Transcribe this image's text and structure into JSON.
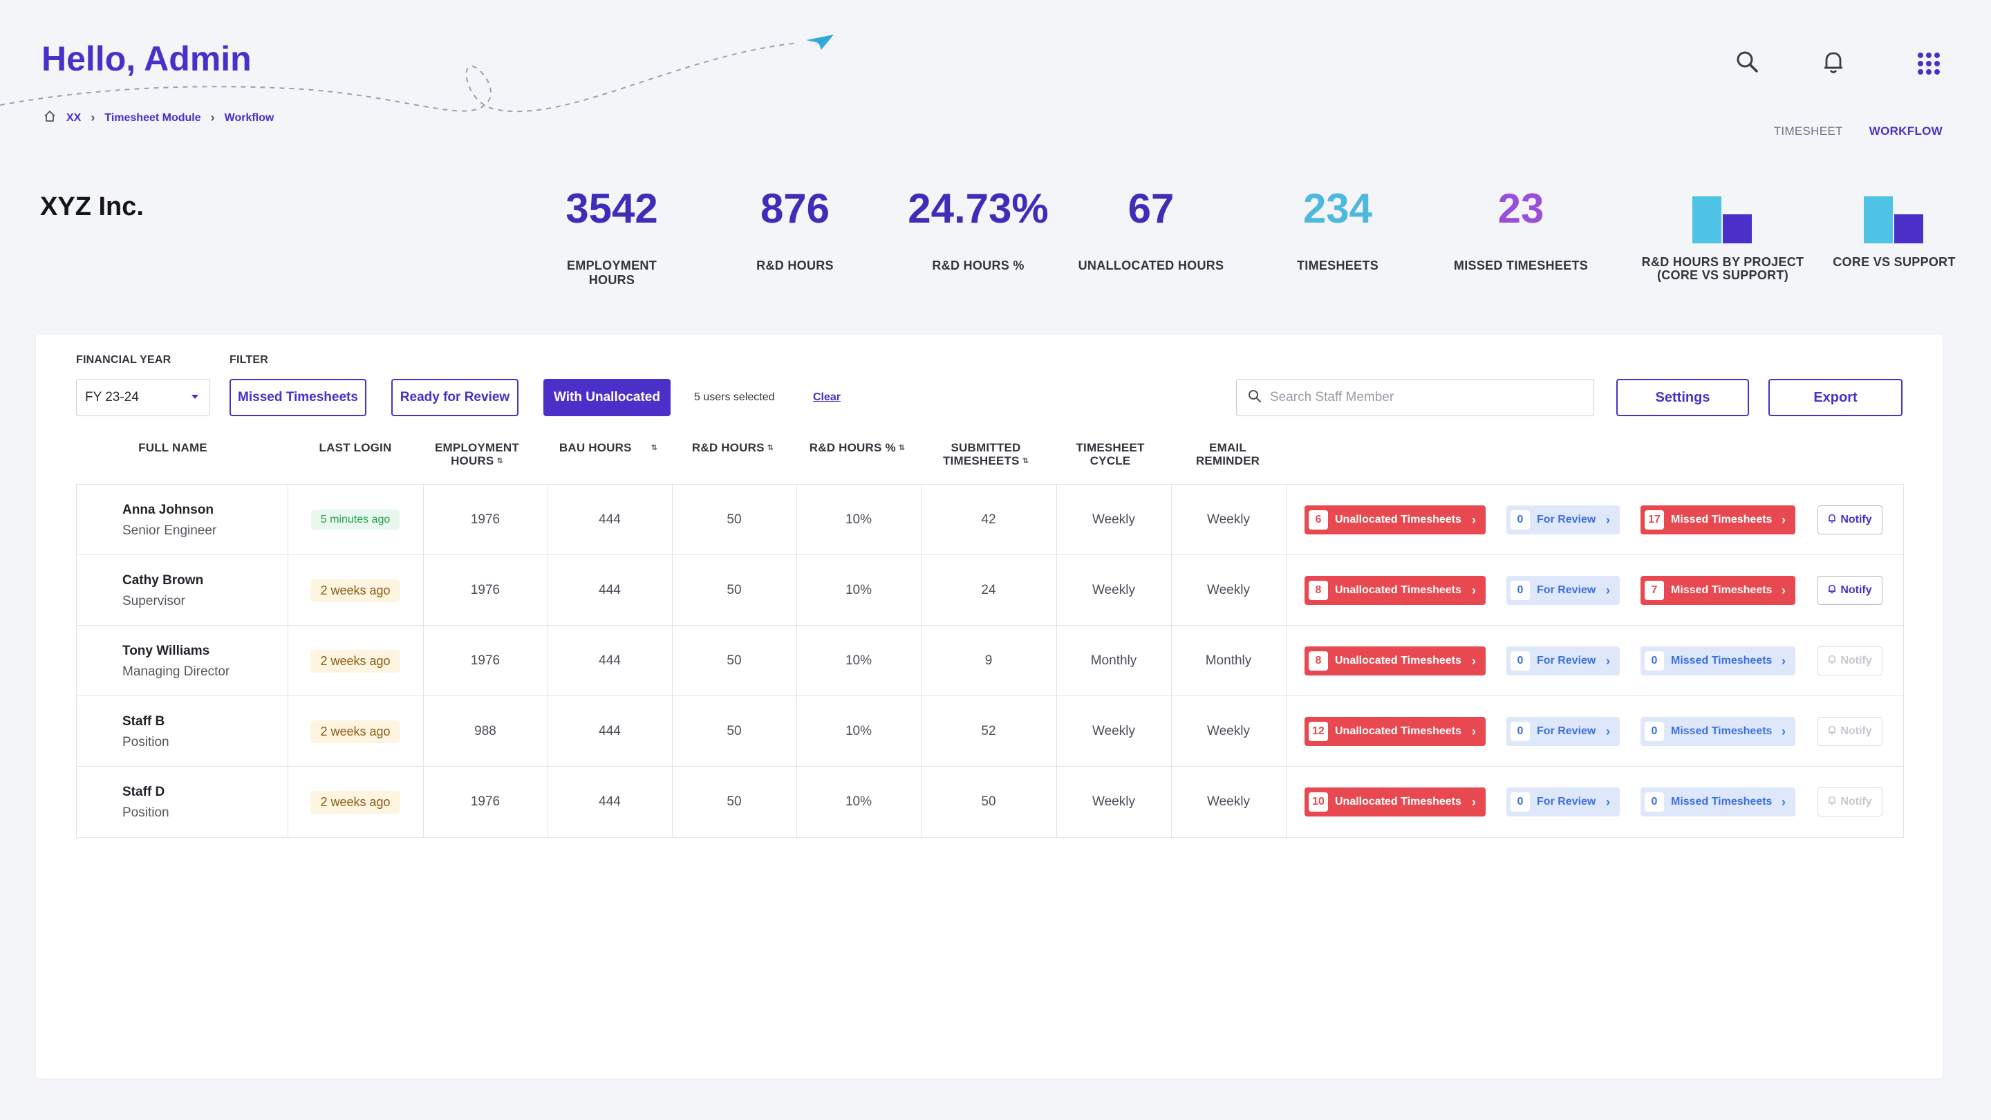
{
  "header": {
    "greeting": "Hello, Admin"
  },
  "icons": {
    "search": "search-icon",
    "bell": "bell-icon",
    "apps": "apps-grid-icon",
    "home": "home-icon",
    "plane": "paper-plane-icon"
  },
  "breadcrumb": [
    "XX",
    "Timesheet Module",
    "Workflow"
  ],
  "view_tabs": [
    {
      "label": "TIMESHEET"
    },
    {
      "label": "WORKFLOW",
      "active": true
    }
  ],
  "company": "XYZ Inc.",
  "stats": [
    {
      "value": "3542",
      "label": "EMPLOYMENT HOURS"
    },
    {
      "value": "876",
      "label": "R&D HOURS"
    },
    {
      "value": "24.73%",
      "label": "R&D HOURS %"
    },
    {
      "value": "67",
      "label": "UNALLOCATED HOURS"
    },
    {
      "value": "234",
      "label": "TIMESHEETS"
    },
    {
      "value": "23",
      "label": "MISSED TIMESHEETS"
    }
  ],
  "chart_stats": [
    {
      "label_line1": "R&D HOURS  BY PROJECT",
      "label_line2": "(CORE VS SUPPORT)"
    },
    {
      "label_line1": "CORE VS SUPPORT",
      "label_line2": ""
    }
  ],
  "colors": {
    "accent": "#4a2fc9",
    "cyan": "#4fb8de",
    "purple": "#9a4fd8",
    "danger": "#e8484f",
    "info": "#3b6fe0",
    "success": "#20a04b"
  },
  "controls": {
    "financial_year_label": "FINANCIAL YEAR",
    "filter_label": "FILTER",
    "financial_year": "FY 23-24",
    "filters": [
      {
        "label": "Missed Timesheets",
        "active": false
      },
      {
        "label": "Ready for Review",
        "active": false
      },
      {
        "label": "With Unallocated",
        "active": true
      }
    ],
    "selected_count": "5 users selected",
    "clear": "Clear",
    "search_placeholder": "Search Staff Member",
    "settings": "Settings",
    "export": "Export"
  },
  "columns": {
    "full_name": "FULL NAME",
    "last_login": "LAST LOGIN",
    "employment_hours_1": "EMPLOYMENT",
    "employment_hours_2": "HOURS",
    "bau_hours": "BAU HOURS",
    "rd_hours": "R&D HOURS",
    "rd_hours_pct": "R&D HOURS %",
    "submitted_1": "SUBMITTED",
    "submitted_2": "TIMESHEETS",
    "cycle_1": "TIMESHEET",
    "cycle_2": "CYCLE",
    "reminder_1": "EMAIL",
    "reminder_2": "REMINDER"
  },
  "action_labels": {
    "unallocated": "Unallocated Timesheets",
    "review": "For Review",
    "missed": "Missed Timesheets",
    "notify": "Notify"
  },
  "rows": [
    {
      "name": "Anna Johnson",
      "position": "Senior Engineer",
      "last_login": "5 minutes ago",
      "login_recent": true,
      "employment": "1976",
      "bau": "444",
      "rd": "50",
      "rd_pct": "10%",
      "submitted": "42",
      "cycle": "Weekly",
      "reminder": "Weekly",
      "unallocated": "6",
      "review": "0",
      "missed": "17",
      "missed_alert": true,
      "notify_enabled": true
    },
    {
      "name": "Cathy Brown",
      "position": "Supervisor",
      "last_login": "2 weeks ago",
      "login_recent": false,
      "employment": "1976",
      "bau": "444",
      "rd": "50",
      "rd_pct": "10%",
      "submitted": "24",
      "cycle": "Weekly",
      "reminder": "Weekly",
      "unallocated": "8",
      "review": "0",
      "missed": "7",
      "missed_alert": true,
      "notify_enabled": true
    },
    {
      "name": "Tony Williams",
      "position": "Managing Director",
      "last_login": "2 weeks ago",
      "login_recent": false,
      "employment": "1976",
      "bau": "444",
      "rd": "50",
      "rd_pct": "10%",
      "submitted": "9",
      "cycle": "Monthly",
      "reminder": "Monthly",
      "unallocated": "8",
      "review": "0",
      "missed": "0",
      "missed_alert": false,
      "notify_enabled": false
    },
    {
      "name": "Staff B",
      "position": "Position",
      "last_login": "2 weeks ago",
      "login_recent": false,
      "employment": "988",
      "bau": "444",
      "rd": "50",
      "rd_pct": "10%",
      "submitted": "52",
      "cycle": "Weekly",
      "reminder": "Weekly",
      "unallocated": "12",
      "review": "0",
      "missed": "0",
      "missed_alert": false,
      "notify_enabled": false
    },
    {
      "name": "Staff D",
      "position": "Position",
      "last_login": "2 weeks ago",
      "login_recent": false,
      "employment": "1976",
      "bau": "444",
      "rd": "50",
      "rd_pct": "10%",
      "submitted": "50",
      "cycle": "Weekly",
      "reminder": "Weekly",
      "unallocated": "10",
      "review": "0",
      "missed": "0",
      "missed_alert": false,
      "notify_enabled": false
    }
  ]
}
